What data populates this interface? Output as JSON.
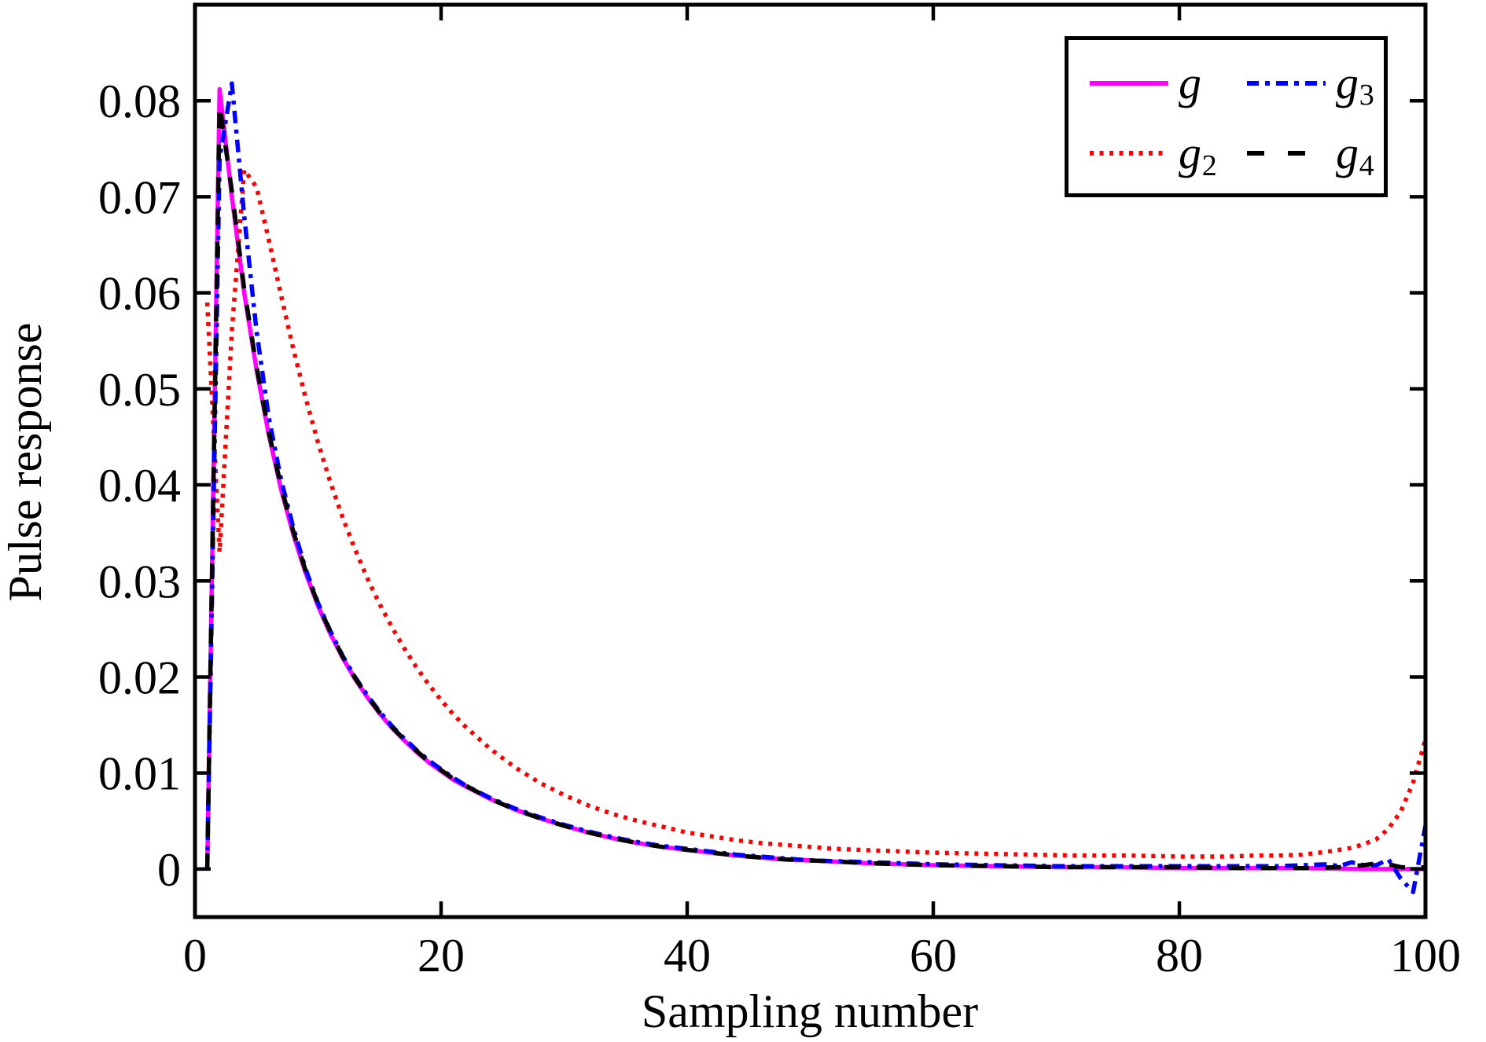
{
  "figure": {
    "background": "#ffffff"
  },
  "chart_data": {
    "type": "line",
    "title": "",
    "xlabel": "Sampling number",
    "ylabel": "Pulse response",
    "xlim": [
      0,
      100
    ],
    "ylim": [
      -0.005,
      0.09
    ],
    "xticks": [
      0,
      20,
      40,
      60,
      80,
      100
    ],
    "xtick_labels": [
      "0",
      "20",
      "40",
      "60",
      "80",
      "100"
    ],
    "yticks": [
      0,
      0.01,
      0.02,
      0.03,
      0.04,
      0.05,
      0.06,
      0.07,
      0.08
    ],
    "ytick_labels": [
      "0",
      "0.01",
      "0.02",
      "0.03",
      "0.04",
      "0.05",
      "0.06",
      "0.07",
      "0.08"
    ],
    "grid": false,
    "legend_position": "top-right",
    "series": [
      {
        "name": "g",
        "color": "#ff00ff",
        "style": "solid",
        "points": [
          [
            1,
            0
          ],
          [
            2,
            0.0812
          ],
          [
            3,
            0.07
          ],
          [
            4,
            0.06
          ],
          [
            5,
            0.052
          ],
          [
            6,
            0.0452
          ],
          [
            7,
            0.0395
          ],
          [
            8,
            0.0348
          ],
          [
            9,
            0.0308
          ],
          [
            10,
            0.0274
          ],
          [
            11,
            0.0245
          ],
          [
            12,
            0.022
          ],
          [
            13,
            0.0198
          ],
          [
            14,
            0.0179
          ],
          [
            15,
            0.0162
          ],
          [
            16,
            0.0147
          ],
          [
            17,
            0.0134
          ],
          [
            18,
            0.0122
          ],
          [
            19,
            0.0111
          ],
          [
            20,
            0.0102
          ],
          [
            21,
            0.0093
          ],
          [
            22,
            0.0086
          ],
          [
            24,
            0.0073
          ],
          [
            26,
            0.0062
          ],
          [
            28,
            0.0053
          ],
          [
            30,
            0.0045
          ],
          [
            32,
            0.0038
          ],
          [
            34,
            0.0032
          ],
          [
            36,
            0.0027
          ],
          [
            38,
            0.0023
          ],
          [
            40,
            0.002
          ],
          [
            42,
            0.0017
          ],
          [
            44,
            0.0014
          ],
          [
            46,
            0.0012
          ],
          [
            48,
            0.001
          ],
          [
            50,
            0.0009
          ],
          [
            55,
            0.0006
          ],
          [
            60,
            0.0004
          ],
          [
            65,
            0.0003
          ],
          [
            70,
            0.0002
          ],
          [
            75,
            0.0002
          ],
          [
            80,
            0.0001
          ],
          [
            85,
            0.0001
          ],
          [
            90,
            0.0001
          ],
          [
            95,
            0
          ],
          [
            100,
            0
          ]
        ]
      },
      {
        "name": "g2",
        "color": "#ff0000",
        "style": "dotted",
        "points": [
          [
            1,
            0.059
          ],
          [
            2,
            0.033
          ],
          [
            3,
            0.056
          ],
          [
            4,
            0.0728
          ],
          [
            5,
            0.071
          ],
          [
            6,
            0.0655
          ],
          [
            7,
            0.0597
          ],
          [
            8,
            0.0541
          ],
          [
            9,
            0.049
          ],
          [
            10,
            0.0444
          ],
          [
            11,
            0.0403
          ],
          [
            12,
            0.0366
          ],
          [
            13,
            0.0333
          ],
          [
            14,
            0.0303
          ],
          [
            15,
            0.0276
          ],
          [
            16,
            0.0252
          ],
          [
            17,
            0.023
          ],
          [
            18,
            0.021
          ],
          [
            19,
            0.0192
          ],
          [
            20,
            0.0176
          ],
          [
            21,
            0.0161
          ],
          [
            22,
            0.0148
          ],
          [
            24,
            0.0125
          ],
          [
            26,
            0.0106
          ],
          [
            28,
            0.009
          ],
          [
            30,
            0.0077
          ],
          [
            32,
            0.0066
          ],
          [
            34,
            0.0057
          ],
          [
            36,
            0.005
          ],
          [
            38,
            0.0044
          ],
          [
            40,
            0.0038
          ],
          [
            42,
            0.0034
          ],
          [
            44,
            0.003
          ],
          [
            46,
            0.0027
          ],
          [
            48,
            0.0025
          ],
          [
            50,
            0.0023
          ],
          [
            52,
            0.0021
          ],
          [
            54,
            0.002
          ],
          [
            56,
            0.0019
          ],
          [
            58,
            0.0018
          ],
          [
            60,
            0.0017
          ],
          [
            64,
            0.0016
          ],
          [
            68,
            0.0015
          ],
          [
            72,
            0.0014
          ],
          [
            76,
            0.0014
          ],
          [
            80,
            0.0013
          ],
          [
            84,
            0.0013
          ],
          [
            86,
            0.0014
          ],
          [
            88,
            0.0014
          ],
          [
            90,
            0.0015
          ],
          [
            92,
            0.0018
          ],
          [
            94,
            0.0022
          ],
          [
            95,
            0.0026
          ],
          [
            96,
            0.0031
          ],
          [
            97,
            0.0042
          ],
          [
            98,
            0.006
          ],
          [
            99,
            0.009
          ],
          [
            100,
            0.0135
          ]
        ]
      },
      {
        "name": "g3",
        "color": "#0000ff",
        "style": "dashdot",
        "points": [
          [
            1,
            0
          ],
          [
            2,
            0.074
          ],
          [
            3,
            0.0818
          ],
          [
            4,
            0.068
          ],
          [
            5,
            0.056
          ],
          [
            6,
            0.047
          ],
          [
            7,
            0.0405
          ],
          [
            8,
            0.0355
          ],
          [
            9,
            0.0312
          ],
          [
            10,
            0.0277
          ],
          [
            11,
            0.0248
          ],
          [
            12,
            0.0222
          ],
          [
            13,
            0.02
          ],
          [
            14,
            0.0181
          ],
          [
            15,
            0.0164
          ],
          [
            16,
            0.0149
          ],
          [
            17,
            0.0136
          ],
          [
            18,
            0.0124
          ],
          [
            19,
            0.0113
          ],
          [
            20,
            0.0104
          ],
          [
            21,
            0.0095
          ],
          [
            22,
            0.0087
          ],
          [
            24,
            0.0074
          ],
          [
            26,
            0.0063
          ],
          [
            28,
            0.0054
          ],
          [
            30,
            0.0046
          ],
          [
            32,
            0.0039
          ],
          [
            34,
            0.0033
          ],
          [
            36,
            0.0028
          ],
          [
            38,
            0.0024
          ],
          [
            40,
            0.0021
          ],
          [
            42,
            0.0018
          ],
          [
            44,
            0.0015
          ],
          [
            46,
            0.0013
          ],
          [
            48,
            0.0011
          ],
          [
            50,
            0.0009
          ],
          [
            55,
            0.0007
          ],
          [
            60,
            0.0005
          ],
          [
            65,
            0.0004
          ],
          [
            70,
            0.0003
          ],
          [
            75,
            0.0003
          ],
          [
            80,
            0.0003
          ],
          [
            85,
            0.0003
          ],
          [
            88,
            0.0003
          ],
          [
            90,
            0.0004
          ],
          [
            92,
            0.0005
          ],
          [
            93,
            0.0003
          ],
          [
            94,
            0.0007
          ],
          [
            95,
            0.0004
          ],
          [
            96,
            0.0004
          ],
          [
            97,
            0.001
          ],
          [
            98,
            -0.001
          ],
          [
            99,
            -0.0024
          ],
          [
            100,
            0.0045
          ]
        ]
      },
      {
        "name": "g4",
        "color": "#000000",
        "style": "dashed",
        "points": [
          [
            1,
            0
          ],
          [
            2,
            0.0796
          ],
          [
            3,
            0.0706
          ],
          [
            4,
            0.0604
          ],
          [
            5,
            0.0523
          ],
          [
            6,
            0.0455
          ],
          [
            7,
            0.0398
          ],
          [
            8,
            0.0351
          ],
          [
            9,
            0.031
          ],
          [
            10,
            0.0276
          ],
          [
            11,
            0.0247
          ],
          [
            12,
            0.0221
          ],
          [
            13,
            0.0199
          ],
          [
            14,
            0.018
          ],
          [
            15,
            0.0163
          ],
          [
            16,
            0.0148
          ],
          [
            17,
            0.0135
          ],
          [
            18,
            0.0123
          ],
          [
            19,
            0.0112
          ],
          [
            20,
            0.0103
          ],
          [
            21,
            0.0094
          ],
          [
            22,
            0.0087
          ],
          [
            24,
            0.0073
          ],
          [
            26,
            0.0062
          ],
          [
            28,
            0.0053
          ],
          [
            30,
            0.0045
          ],
          [
            32,
            0.0038
          ],
          [
            34,
            0.0032
          ],
          [
            36,
            0.0027
          ],
          [
            38,
            0.0023
          ],
          [
            40,
            0.002
          ],
          [
            42,
            0.0017
          ],
          [
            44,
            0.0014
          ],
          [
            46,
            0.0012
          ],
          [
            48,
            0.001
          ],
          [
            50,
            0.0009
          ],
          [
            55,
            0.0006
          ],
          [
            60,
            0.0004
          ],
          [
            65,
            0.0003
          ],
          [
            70,
            0.0002
          ],
          [
            75,
            0.0002
          ],
          [
            80,
            0.0002
          ],
          [
            85,
            0.0001
          ],
          [
            90,
            0.0001
          ],
          [
            93,
            0.0002
          ],
          [
            95,
            0.0004
          ],
          [
            96,
            0.0006
          ],
          [
            97,
            0.0005
          ],
          [
            98,
            0.0002
          ],
          [
            99,
            0.0001
          ],
          [
            100,
            0.0002
          ]
        ]
      }
    ],
    "legend": {
      "entries": [
        {
          "base": "g",
          "sub": "",
          "series": 0
        },
        {
          "base": "g",
          "sub": "3",
          "series": 2
        },
        {
          "base": "g",
          "sub": "2",
          "series": 1
        },
        {
          "base": "g",
          "sub": "4",
          "series": 3
        }
      ]
    }
  }
}
